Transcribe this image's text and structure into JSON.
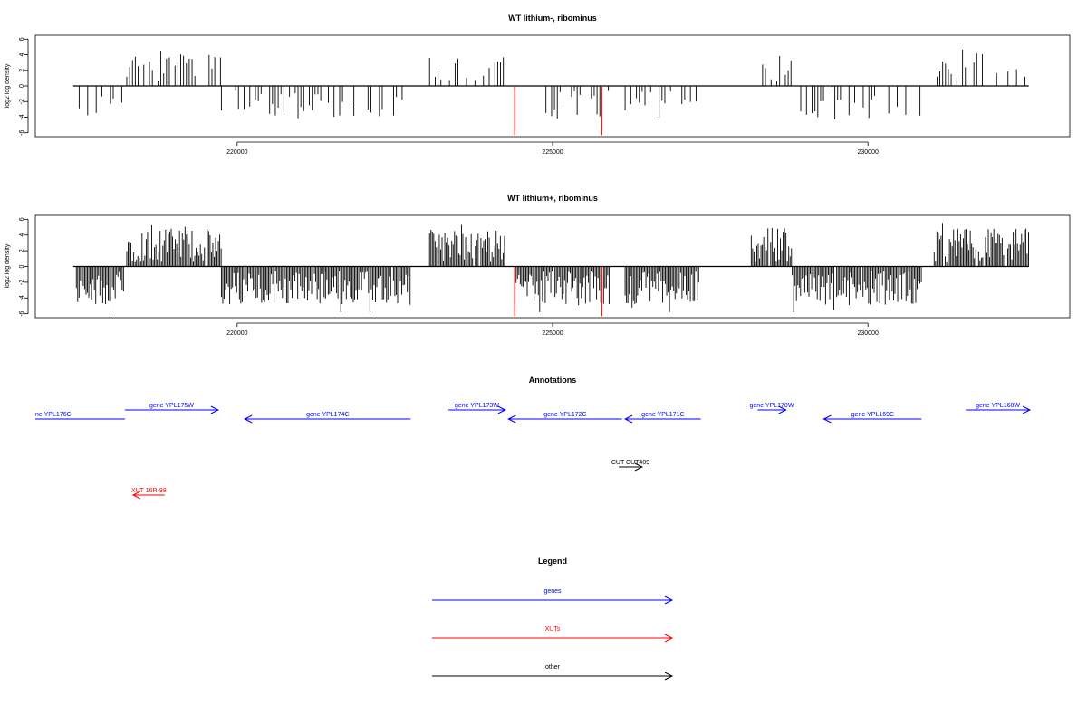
{
  "chart_data": [
    {
      "type": "bar",
      "title": "WT lithium-, ribominus",
      "ylabel": "log2 log density",
      "xlim": [
        216800,
        233200
      ],
      "ylim": [
        -6.5,
        6.5
      ],
      "x_ticks": [
        220000,
        225000,
        230000
      ],
      "y_ticks": [
        -6,
        -4,
        -2,
        0,
        2,
        4,
        6
      ],
      "baseline_range": [
        217400,
        232550
      ],
      "density": "sparse",
      "highlight_color": "#ff0000",
      "highlight_x": [
        224400,
        225780
      ],
      "highlight_values": [
        -6.3,
        -6.3
      ],
      "bar_color": "#000000"
    },
    {
      "type": "bar",
      "title": "WT lithium+, ribominus",
      "ylabel": "log2 log density",
      "xlim": [
        216800,
        233200
      ],
      "ylim": [
        -6.5,
        6.5
      ],
      "x_ticks": [
        220000,
        225000,
        230000
      ],
      "y_ticks": [
        -6,
        -4,
        -2,
        0,
        2,
        4,
        6
      ],
      "baseline_range": [
        217400,
        232550
      ],
      "density": "dense",
      "highlight_color": "#ff0000",
      "highlight_x": [
        224400,
        225780
      ],
      "highlight_values": [
        -6.3,
        -6.3
      ],
      "bar_color": "#000000"
    }
  ],
  "annotations": {
    "title": "Annotations",
    "items": [
      {
        "label": "ne YPL176C",
        "start": 216800,
        "end": 218220,
        "strand": "none",
        "row": 2,
        "color": "#0000ff"
      },
      {
        "label": "gene YPL175W",
        "start": 218220,
        "end": 219700,
        "strand": "+",
        "row": 1,
        "color": "#0000ff"
      },
      {
        "label": "gene YPL174C",
        "start": 220120,
        "end": 222750,
        "strand": "-",
        "row": 2,
        "color": "#0000ff"
      },
      {
        "label": "gene YPL173W",
        "start": 223350,
        "end": 224250,
        "strand": "+",
        "row": 1,
        "color": "#0000ff"
      },
      {
        "label": "gene YPL172C",
        "start": 224300,
        "end": 226100,
        "strand": "-",
        "row": 2,
        "color": "#0000ff"
      },
      {
        "label": "gene YPL171C",
        "start": 226150,
        "end": 227350,
        "strand": "-",
        "row": 2,
        "color": "#0000ff"
      },
      {
        "label": "gene YPL170W",
        "start": 228250,
        "end": 228700,
        "strand": "+",
        "row": 1,
        "color": "#0000ff"
      },
      {
        "label": "gene YPL169C",
        "start": 229300,
        "end": 230850,
        "strand": "-",
        "row": 2,
        "color": "#0000ff"
      },
      {
        "label": "gene YPL168W",
        "start": 231550,
        "end": 232850,
        "strand": "+",
        "row": 1,
        "color": "#0000ff"
      },
      {
        "label": "CUT CUT409",
        "start": 226050,
        "end": 226420,
        "strand": "+",
        "row": 3,
        "color": "#000000"
      },
      {
        "label": "XUT 16R-98",
        "start": 218350,
        "end": 218850,
        "strand": "-",
        "row": 4,
        "color": "#ff0000"
      }
    ]
  },
  "legend": {
    "title": "Legend",
    "items": [
      {
        "label": "genes",
        "color": "#0000ff"
      },
      {
        "label": "XUTs",
        "color": "#ff0000"
      },
      {
        "label": "other",
        "color": "#000000"
      }
    ]
  }
}
